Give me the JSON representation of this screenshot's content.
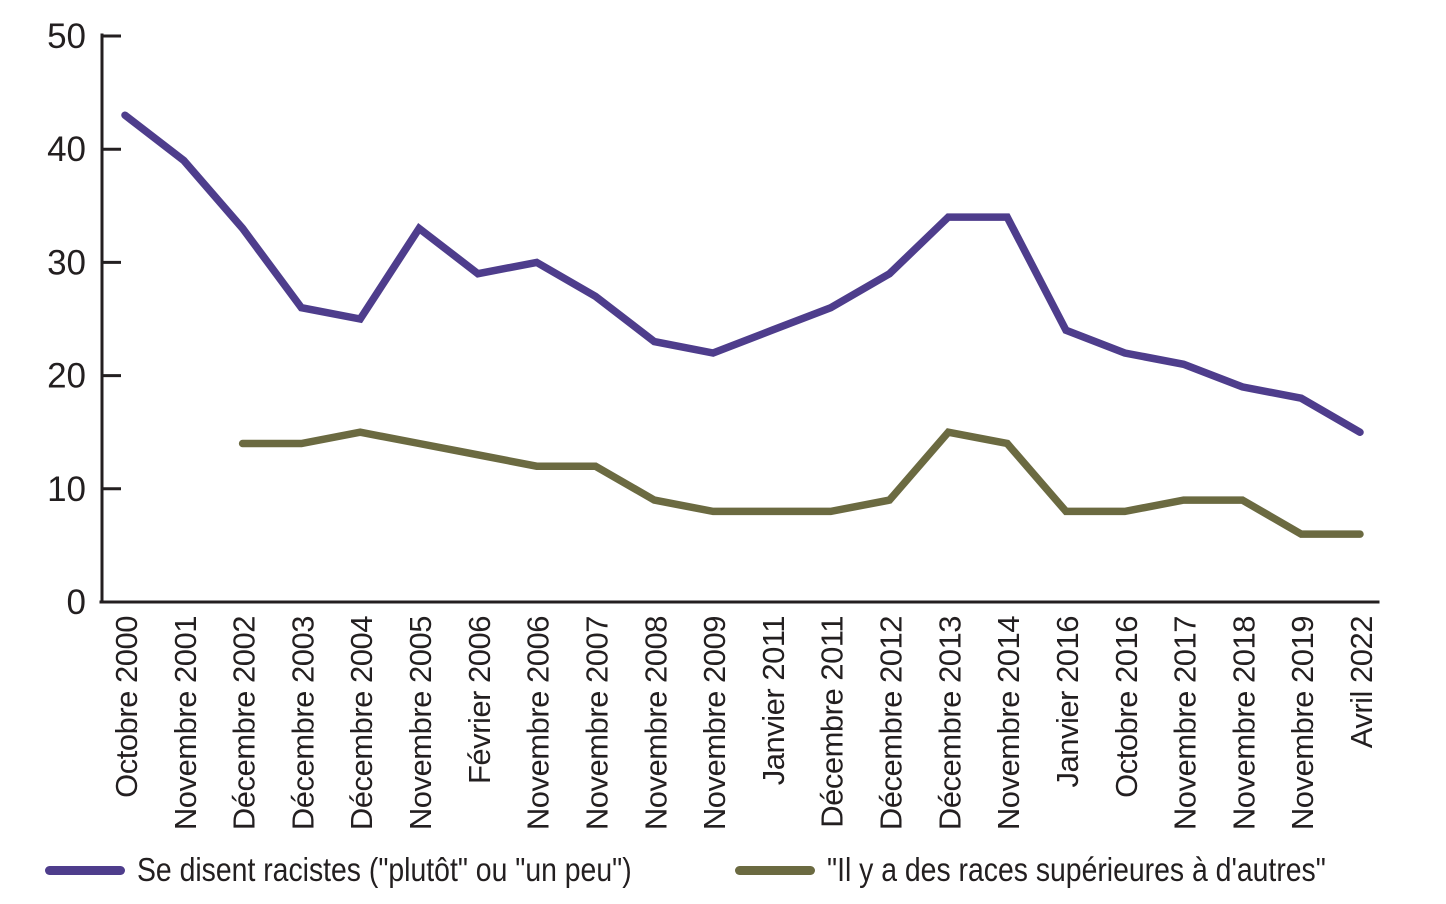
{
  "chart_data": {
    "type": "line",
    "categories": [
      "Octobre 2000",
      "Novembre 2001",
      "Décembre 2002",
      "Décembre 2003",
      "Décembre 2004",
      "Novembre 2005",
      "Février 2006",
      "Novembre 2006",
      "Novembre 2007",
      "Novembre 2008",
      "Novembre 2009",
      "Janvier 2011",
      "Décembre 2011",
      "Décembre 2012",
      "Décembre 2013",
      "Novembre 2014",
      "Janvier 2016",
      "Octobre 2016",
      "Novembre 2017",
      "Novembre 2018",
      "Novembre 2019",
      "Avril 2022"
    ],
    "series": [
      {
        "key": "se-disent-racistes",
        "name": "Se disent racistes (\"plutôt\" ou \"un peu\")",
        "color": "#4e3d8c",
        "values": [
          43,
          39,
          33,
          26,
          25,
          33,
          29,
          30,
          27,
          23,
          22,
          24,
          26,
          29,
          34,
          34,
          24,
          22,
          21,
          19,
          18,
          15
        ]
      },
      {
        "key": "races-superieures",
        "name": "\"Il y a des races supérieures à d'autres\"",
        "color": "#6b6a41",
        "values": [
          null,
          null,
          14,
          14,
          15,
          14,
          13,
          12,
          12,
          9,
          8,
          8,
          8,
          9,
          15,
          14,
          8,
          8,
          9,
          9,
          6,
          6
        ]
      }
    ],
    "ylim": [
      0,
      50
    ],
    "yticks": [
      0,
      10,
      20,
      30,
      40,
      50
    ],
    "grid": false,
    "legend_position": "bottom",
    "axis_color": "#231f20",
    "text_color": "#231f20",
    "background_color": "#ffffff"
  }
}
